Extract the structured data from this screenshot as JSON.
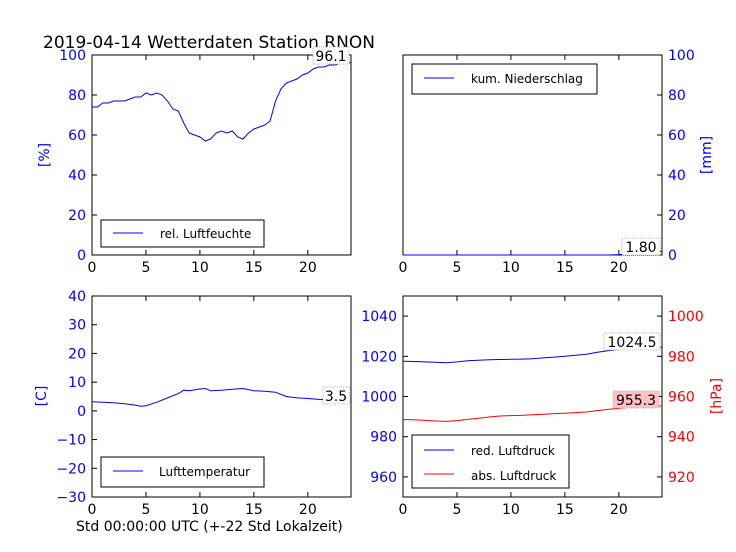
{
  "title": "2019-04-14 Wetterdaten Station RNON",
  "footer": "Std 00:00:00 UTC (+-22 Std Lokalzeit)",
  "colors": {
    "axis_blue": "#0000ff",
    "axis_red": "#ff0000",
    "line_blue": "#0000ff",
    "line_red": "#ff0000",
    "ann_red_bg": "#ffc0c0"
  },
  "chart_data": [
    {
      "type": "line",
      "ylabel": "[%]",
      "xlim": [
        0,
        24
      ],
      "ylim": [
        0,
        100
      ],
      "xticks": [
        "0",
        "5",
        "10",
        "15",
        "20"
      ],
      "yticks": [
        "0",
        "20",
        "40",
        "60",
        "80",
        "100"
      ],
      "y_axis_side": "left",
      "legend_placement": "lower-left",
      "annotation": "96.1",
      "series": [
        {
          "name": "rel. Luftfeuchte",
          "color": "#0000ff",
          "x": [
            0,
            0.5,
            1,
            1.5,
            2,
            2.5,
            3,
            3.5,
            4,
            4.5,
            5,
            5.5,
            6,
            6.5,
            7,
            7.5,
            8,
            8.5,
            9,
            9.5,
            10,
            10.5,
            11,
            11.5,
            12,
            12.5,
            13,
            13.5,
            14,
            14.5,
            15,
            15.5,
            16,
            16.5,
            17,
            17.5,
            18,
            18.5,
            19,
            19.5,
            20,
            20.5,
            21,
            21.5,
            22,
            22.5,
            23,
            23.5,
            24
          ],
          "y": [
            74,
            74,
            76,
            76,
            77,
            77,
            77,
            78,
            79,
            79,
            81,
            80,
            81,
            80,
            77,
            73,
            72,
            66,
            61,
            60,
            59,
            57,
            58,
            61,
            62,
            61,
            62,
            59,
            58,
            61,
            63,
            64,
            65,
            67,
            77,
            83,
            86,
            87,
            88,
            90,
            91,
            93,
            94,
            94,
            95,
            95,
            96,
            96,
            96.1
          ]
        }
      ]
    },
    {
      "type": "line",
      "ylabel": "[mm]",
      "xlim": [
        0,
        24
      ],
      "ylim": [
        0,
        100
      ],
      "xticks": [
        "0",
        "5",
        "10",
        "15",
        "20"
      ],
      "yticks": [
        "0",
        "20",
        "40",
        "60",
        "80",
        "100"
      ],
      "y_axis_side": "right",
      "legend_placement": "upper-left",
      "annotation": "1.80",
      "series": [
        {
          "name": "kum. Niederschlag",
          "color": "#0000ff",
          "x": [
            0,
            4,
            8,
            12,
            16,
            19,
            20,
            21,
            22,
            23,
            24
          ],
          "y": [
            0,
            0,
            0,
            0,
            0,
            0,
            0.2,
            0.6,
            1.0,
            1.4,
            1.8
          ]
        }
      ]
    },
    {
      "type": "line",
      "ylabel": "[C]",
      "xlim": [
        0,
        24
      ],
      "ylim": [
        -30,
        40
      ],
      "xticks": [
        "0",
        "5",
        "10",
        "15",
        "20"
      ],
      "yticks": [
        "−30",
        "−20",
        "−10",
        "0",
        "10",
        "20",
        "30",
        "40"
      ],
      "y_axis_side": "left",
      "legend_placement": "lower-left",
      "annotation": "3.5",
      "series": [
        {
          "name": "Lufttemperatur",
          "color": "#0000ff",
          "x": [
            0,
            1,
            2,
            3,
            4,
            4.5,
            5,
            6,
            7,
            8,
            8.5,
            9,
            10,
            10.5,
            11,
            12,
            13,
            14,
            15,
            16,
            17,
            18,
            19,
            20,
            21,
            22,
            23,
            24
          ],
          "y": [
            3.2,
            3.0,
            2.8,
            2.5,
            2.0,
            1.6,
            1.8,
            3.0,
            4.5,
            6.0,
            7.2,
            7.0,
            7.6,
            7.8,
            7.0,
            7.2,
            7.5,
            7.8,
            7.0,
            6.8,
            6.5,
            5.0,
            4.5,
            4.3,
            4.0,
            3.9,
            3.7,
            3.5
          ]
        }
      ]
    },
    {
      "type": "line",
      "xlim": [
        0,
        24
      ],
      "ylim_left": [
        950,
        1050
      ],
      "ylim_right": [
        910,
        1010
      ],
      "ylabel_right": "[hPa]",
      "xticks": [
        "0",
        "5",
        "10",
        "15",
        "20"
      ],
      "yticks_left": [
        "960",
        "980",
        "1000",
        "1020",
        "1040"
      ],
      "yticks_right": [
        "920",
        "940",
        "960",
        "980",
        "1000"
      ],
      "legend_placement": "lower-left",
      "annotations": [
        "1024.5",
        "955.3"
      ],
      "series": [
        {
          "name": "red. Luftdruck",
          "color": "#0000ff",
          "axis": "left",
          "x": [
            0,
            1,
            2,
            3,
            4,
            5,
            6,
            7,
            8,
            9,
            10,
            11,
            12,
            13,
            14,
            15,
            16,
            17,
            18,
            19,
            20,
            21,
            22,
            23,
            24
          ],
          "y": [
            1017.5,
            1017.4,
            1017.2,
            1017.0,
            1016.8,
            1017.2,
            1017.8,
            1018.0,
            1018.3,
            1018.4,
            1018.5,
            1018.6,
            1018.8,
            1019.2,
            1019.6,
            1020.0,
            1020.5,
            1021.0,
            1022.0,
            1022.8,
            1023.4,
            1023.8,
            1024.0,
            1024.3,
            1024.5
          ]
        },
        {
          "name": "abs. Luftdruck",
          "color": "#ff0000",
          "axis": "right",
          "x": [
            0,
            1,
            2,
            3,
            4,
            5,
            6,
            7,
            8,
            9,
            10,
            11,
            12,
            13,
            14,
            15,
            16,
            17,
            18,
            19,
            20,
            21,
            22,
            23,
            24
          ],
          "y": [
            948.5,
            948.4,
            948.1,
            947.8,
            947.6,
            948.0,
            948.6,
            949.2,
            949.8,
            950.3,
            950.5,
            950.6,
            950.9,
            951.2,
            951.5,
            951.7,
            952.0,
            952.3,
            953.0,
            953.6,
            954.2,
            954.6,
            954.9,
            955.1,
            955.3
          ]
        }
      ]
    }
  ]
}
